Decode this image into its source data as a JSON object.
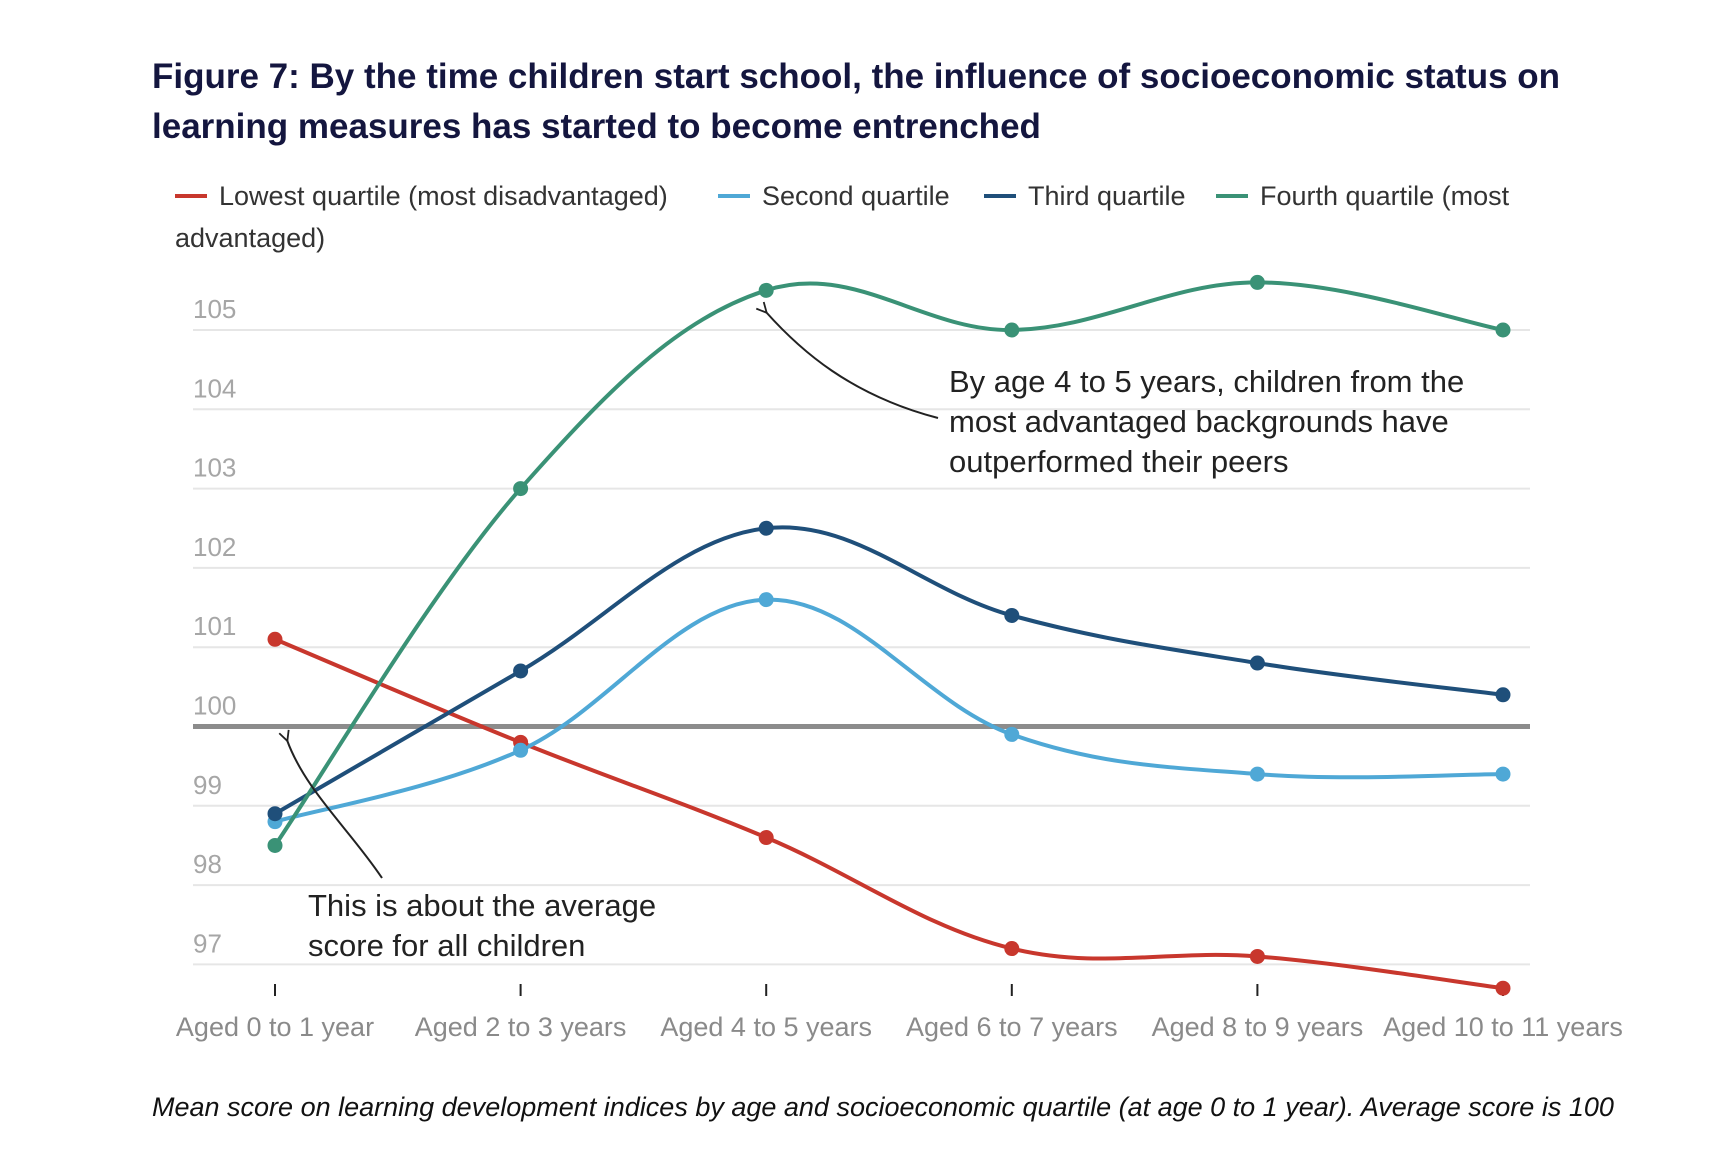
{
  "figure": {
    "title": "Figure 7: By the time children start school, the influence of socioeconomic status on learning measures has started to become entrenched",
    "caption": "Mean score on learning development indices by age and socioeconomic quartile (at age 0 to 1 year). Average score is 100"
  },
  "chart_data": {
    "type": "line",
    "categories": [
      "Aged 0 to 1 year",
      "Aged 2 to 3 years",
      "Aged 4 to 5 years",
      "Aged 6 to 7 years",
      "Aged 8 to 9 years",
      "Aged 10 to 11 years"
    ],
    "series": [
      {
        "name": "Lowest quartile (most disadvantaged)",
        "color": "#c8372d",
        "values": [
          101.1,
          99.8,
          98.6,
          97.2,
          97.1,
          96.7
        ]
      },
      {
        "name": "Second quartile",
        "color": "#4fa8d6",
        "values": [
          98.8,
          99.7,
          101.6,
          99.9,
          99.4,
          99.4
        ]
      },
      {
        "name": "Third quartile",
        "color": "#1f4f7a",
        "values": [
          98.9,
          100.7,
          102.5,
          101.4,
          100.8,
          100.4
        ]
      },
      {
        "name": "Fourth quartile (most advantaged)",
        "color": "#3a9276",
        "values": [
          98.5,
          103.0,
          105.5,
          105.0,
          105.6,
          105.0
        ]
      }
    ],
    "legend_wrap": {
      "line1_tail": "Fourth quartile (most",
      "line2": "advantaged)"
    },
    "yticks": [
      97,
      98,
      99,
      100,
      101,
      102,
      103,
      104,
      105
    ],
    "ylim": [
      96.6,
      105.9
    ],
    "reference_line": 100,
    "grid": true,
    "legend_position": "top",
    "annotations": [
      {
        "lines": [
          "By age 4 to 5 years, children from the",
          "most advantaged backgrounds have",
          "outperformed their peers"
        ]
      },
      {
        "lines": [
          "This is about the average",
          "score for all children"
        ]
      }
    ]
  }
}
